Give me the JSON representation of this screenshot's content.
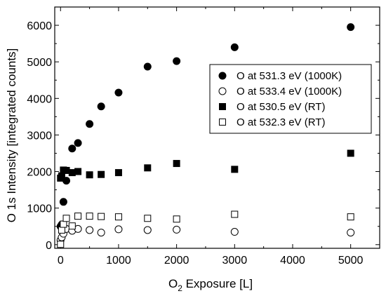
{
  "chart_data": {
    "type": "scatter",
    "xlabel_main": "O",
    "xlabel_sub": "2",
    "xlabel_rest": " Exposure [L]",
    "ylabel": "O 1s Intensity [integrated counts]",
    "xlim": [
      -100,
      5500
    ],
    "ylim": [
      -100,
      6500
    ],
    "xticks": [
      0,
      1000,
      2000,
      3000,
      4000,
      5000
    ],
    "yticks": [
      0,
      1000,
      2000,
      3000,
      4000,
      5000,
      6000
    ],
    "grid": false,
    "legend_position": "upper-right",
    "series": [
      {
        "name": "O at 531.3 eV (1000K)",
        "marker": "circle",
        "filled": true,
        "x": [
          0,
          20,
          50,
          100,
          200,
          300,
          500,
          700,
          1000,
          1500,
          2000,
          3000,
          5000
        ],
        "y": [
          500,
          550,
          1170,
          1750,
          2630,
          2780,
          3300,
          3780,
          4160,
          4870,
          5020,
          5400,
          5950
        ]
      },
      {
        "name": "O at 533.4 eV (1000K)",
        "marker": "circle",
        "filled": false,
        "x": [
          0,
          20,
          50,
          100,
          200,
          300,
          500,
          700,
          1000,
          1500,
          2000,
          3000,
          5000
        ],
        "y": [
          120,
          200,
          300,
          430,
          380,
          430,
          400,
          330,
          420,
          400,
          410,
          350,
          330
        ]
      },
      {
        "name": "O at 530.5 eV (RT)",
        "marker": "square",
        "filled": true,
        "x": [
          0,
          20,
          50,
          100,
          200,
          300,
          500,
          700,
          1000,
          1500,
          2000,
          3000,
          5000
        ],
        "y": [
          1820,
          1880,
          2040,
          2030,
          1970,
          2000,
          1910,
          1920,
          1970,
          2100,
          2220,
          2060,
          2500
        ]
      },
      {
        "name": "O at 532.3 eV (RT)",
        "marker": "square",
        "filled": false,
        "x": [
          0,
          20,
          50,
          100,
          200,
          300,
          500,
          700,
          1000,
          1500,
          2000,
          3000,
          5000
        ],
        "y": [
          10,
          400,
          560,
          720,
          510,
          780,
          780,
          770,
          760,
          720,
          700,
          830,
          760
        ]
      }
    ]
  }
}
